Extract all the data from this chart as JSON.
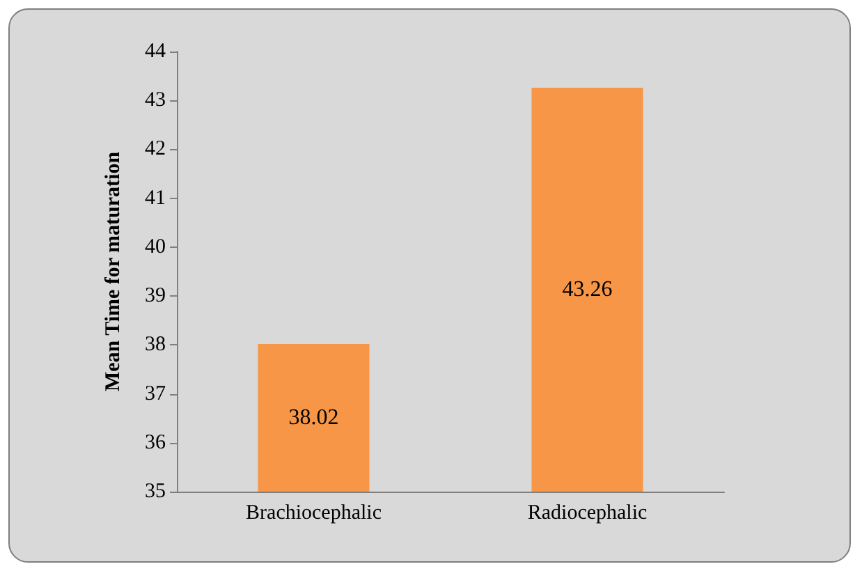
{
  "chart_data": {
    "type": "bar",
    "ylabel": "Mean Time for maturation",
    "categories": [
      "Brachiocephalic",
      "Radiocephalic"
    ],
    "values": [
      38.02,
      43.26
    ],
    "color": "#f79646",
    "ylim": [
      35,
      44
    ],
    "yticks": [
      35,
      36,
      37,
      38,
      39,
      40,
      41,
      42,
      43,
      44
    ],
    "grid": false,
    "data_labels": true
  }
}
